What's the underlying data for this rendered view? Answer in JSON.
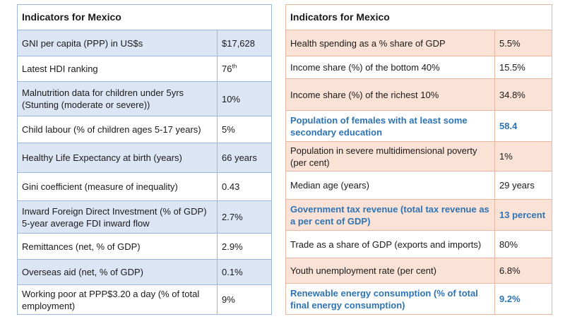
{
  "left_table": {
    "title": "Indicators for Mexico",
    "rows": [
      {
        "label": "GNI per capita (PPP) in US$s",
        "value": "$17,628"
      },
      {
        "label": "Latest HDI ranking",
        "value": "76",
        "value_sup": "th"
      },
      {
        "label": "Malnutrition data for children under 5yrs (Stunting (moderate or severe))",
        "value": "10%"
      },
      {
        "label": "Child labour (% of children ages 5-17 years)",
        "value": "5%"
      },
      {
        "label": "Healthy Life Expectancy at birth (years)",
        "value": "66 years"
      },
      {
        "label": "Gini coefficient (measure of inequality)",
        "value": "0.43"
      },
      {
        "label": "Inward Foreign Direct Investment (% of GDP) 5-year average FDI inward flow",
        "value": "2.7%"
      },
      {
        "label": "Remittances (net, % of GDP)",
        "value": "2.9%"
      },
      {
        "label": "Overseas aid (net, % of GDP)",
        "value": "0.1%"
      },
      {
        "label": "Working poor at PPP$3.20 a day (% of total employment)",
        "value": "9%"
      }
    ]
  },
  "right_table": {
    "title": "Indicators for Mexico",
    "rows": [
      {
        "label": "Health spending as a % share of GDP",
        "value": "5.5%"
      },
      {
        "label": "Income share (%) of the bottom 40%",
        "value": "15.5%"
      },
      {
        "label": "Income share (%) of the richest 10%",
        "value": "34.8%"
      },
      {
        "label": "Population of females with at least some secondary education",
        "value": "58.4"
      },
      {
        "label": "Population in severe multidimensional poverty (per cent)",
        "value": "1%"
      },
      {
        "label": "Median age (years)",
        "value": "29 years"
      },
      {
        "label": "Government tax revenue (total tax revenue as a per cent of GDP)",
        "value": "13 percent"
      },
      {
        "label": "Trade as a share of GDP (exports and imports)",
        "value": "80%"
      },
      {
        "label": "Youth unemployment rate (per cent)",
        "value": "6.8%"
      },
      {
        "label": "Renewable energy consumption (% of total final energy consumption)",
        "value": "9.2%"
      }
    ]
  },
  "colors": {
    "left_border": "#9db7d9",
    "left_shade": "#dbe5f3",
    "right_border": "#e8b7a0",
    "right_shade": "#fbe2d6",
    "emphasis_text": "#2e74b5"
  }
}
